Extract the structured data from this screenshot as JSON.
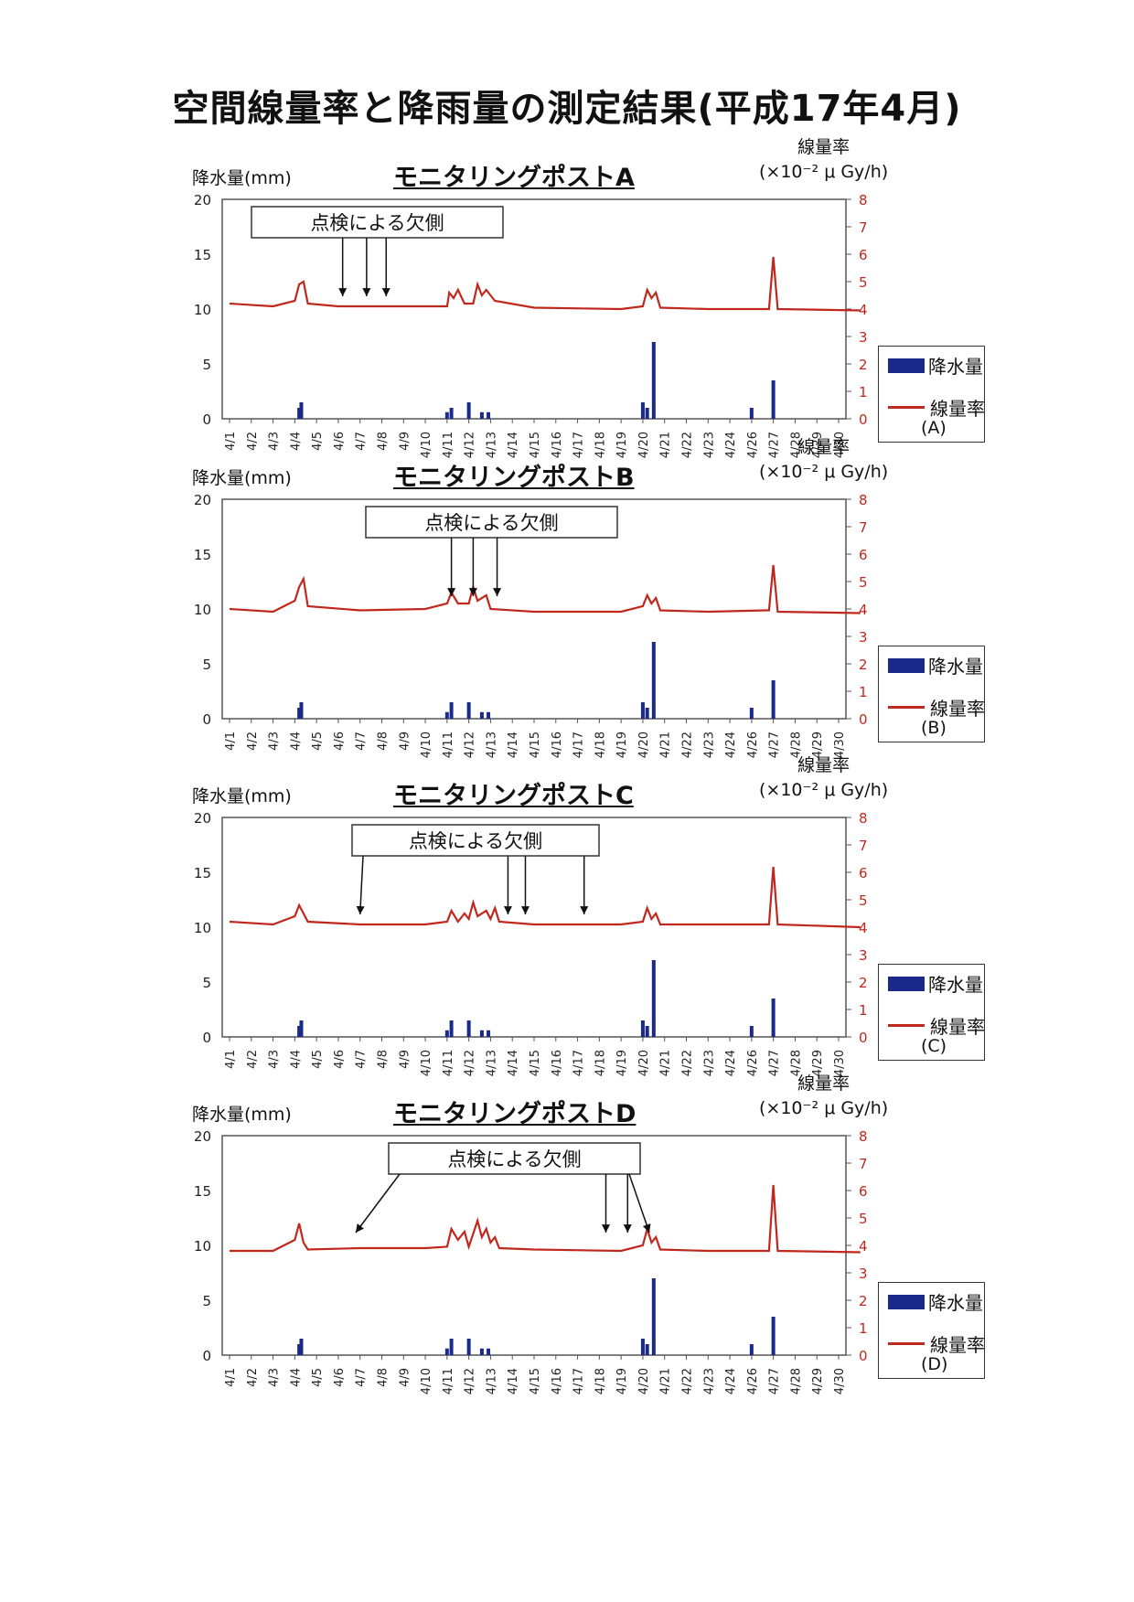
{
  "title": "空間線量率と降雨量の測定結果(平成17年4月)",
  "legend_rain": "降水量",
  "legend_dose": "線量率",
  "left_axis_label": "降水量(mm)",
  "right_axis_label_1": "線量率",
  "right_axis_label_2": "(×10⁻² μ Gy/h)",
  "note": "点検による欠側",
  "x_labels": [
    "4/1",
    "4/2",
    "4/3",
    "4/4",
    "4/5",
    "4/6",
    "4/7",
    "4/8",
    "4/9",
    "4/10",
    "4/11",
    "4/12",
    "4/13",
    "4/14",
    "4/15",
    "4/16",
    "4/17",
    "4/18",
    "4/19",
    "4/20",
    "4/21",
    "4/22",
    "4/23",
    "4/24",
    "4/26",
    "4/27",
    "4/28",
    "4/29",
    "4/30"
  ],
  "colors": {
    "rain": "#1a2a8a",
    "dose": "#c0281e"
  },
  "chart_data": [
    {
      "type": "bar+line",
      "title": "モニタリングポストA",
      "post_label": "(A)",
      "ylim_left": [
        0,
        20
      ],
      "yticks_left": [
        0,
        5,
        10,
        15,
        20
      ],
      "ylim_right": [
        0,
        8
      ],
      "yticks_right": [
        0,
        1,
        2,
        3,
        4,
        5,
        6,
        7,
        8
      ],
      "rain": [
        [
          3.2,
          1.0
        ],
        [
          3.3,
          1.5
        ],
        [
          10.0,
          0.6
        ],
        [
          10.2,
          1.0
        ],
        [
          11.0,
          1.5
        ],
        [
          11.6,
          0.6
        ],
        [
          11.9,
          0.6
        ],
        [
          19.0,
          1.5
        ],
        [
          19.2,
          1.0
        ],
        [
          19.5,
          7.0
        ],
        [
          24.0,
          1.0
        ],
        [
          25.0,
          3.5
        ]
      ],
      "dose": [
        [
          0,
          4.2
        ],
        [
          2,
          4.1
        ],
        [
          3.0,
          4.3
        ],
        [
          3.2,
          4.9
        ],
        [
          3.4,
          5.0
        ],
        [
          3.6,
          4.2
        ],
        [
          5.0,
          4.1
        ],
        [
          6.0,
          4.1
        ],
        [
          8.0,
          4.1
        ],
        [
          10.0,
          4.1
        ],
        [
          10.1,
          4.6
        ],
        [
          10.3,
          4.4
        ],
        [
          10.5,
          4.7
        ],
        [
          10.8,
          4.2
        ],
        [
          11.2,
          4.2
        ],
        [
          11.4,
          4.9
        ],
        [
          11.6,
          4.5
        ],
        [
          11.8,
          4.7
        ],
        [
          12.0,
          4.5
        ],
        [
          12.2,
          4.3
        ],
        [
          14.0,
          4.05
        ],
        [
          18.0,
          4.0
        ],
        [
          19.0,
          4.1
        ],
        [
          19.2,
          4.7
        ],
        [
          19.4,
          4.4
        ],
        [
          19.6,
          4.6
        ],
        [
          19.8,
          4.05
        ],
        [
          22.0,
          4.0
        ],
        [
          24.0,
          4.0
        ],
        [
          24.8,
          4.0
        ],
        [
          25.0,
          5.9
        ],
        [
          25.2,
          4.0
        ],
        [
          29.0,
          3.95
        ]
      ],
      "gaps": [
        5.2,
        6.3,
        7.2
      ]
    },
    {
      "type": "bar+line",
      "title": "モニタリングポストB",
      "post_label": "(B)",
      "ylim_left": [
        0,
        20
      ],
      "yticks_left": [
        0,
        5,
        10,
        15,
        20
      ],
      "ylim_right": [
        0,
        8
      ],
      "yticks_right": [
        0,
        1,
        2,
        3,
        4,
        5,
        6,
        7,
        8
      ],
      "rain": [
        [
          3.2,
          1.0
        ],
        [
          3.3,
          1.5
        ],
        [
          10.0,
          0.6
        ],
        [
          10.2,
          1.5
        ],
        [
          11.0,
          1.5
        ],
        [
          11.6,
          0.6
        ],
        [
          11.9,
          0.6
        ],
        [
          19.0,
          1.5
        ],
        [
          19.2,
          1.0
        ],
        [
          19.5,
          7.0
        ],
        [
          24.0,
          1.0
        ],
        [
          25.0,
          3.5
        ]
      ],
      "dose": [
        [
          0,
          4.0
        ],
        [
          2,
          3.9
        ],
        [
          3.0,
          4.3
        ],
        [
          3.2,
          4.8
        ],
        [
          3.4,
          5.1
        ],
        [
          3.6,
          4.1
        ],
        [
          6.0,
          3.95
        ],
        [
          9.0,
          4.0
        ],
        [
          10.0,
          4.2
        ],
        [
          10.2,
          4.6
        ],
        [
          10.5,
          4.2
        ],
        [
          11.0,
          4.2
        ],
        [
          11.2,
          4.8
        ],
        [
          11.4,
          4.3
        ],
        [
          11.8,
          4.5
        ],
        [
          12.0,
          4.0
        ],
        [
          14.0,
          3.9
        ],
        [
          18.0,
          3.9
        ],
        [
          19.0,
          4.1
        ],
        [
          19.2,
          4.5
        ],
        [
          19.4,
          4.2
        ],
        [
          19.6,
          4.4
        ],
        [
          19.8,
          3.95
        ],
        [
          22.0,
          3.9
        ],
        [
          24.6,
          3.95
        ],
        [
          24.8,
          3.95
        ],
        [
          25.0,
          5.6
        ],
        [
          25.2,
          3.9
        ],
        [
          29.0,
          3.85
        ]
      ],
      "gaps": [
        10.2,
        11.2,
        12.3
      ]
    },
    {
      "type": "bar+line",
      "title": "モニタリングポストC",
      "post_label": "(C)",
      "ylim_left": [
        0,
        20
      ],
      "yticks_left": [
        0,
        5,
        10,
        15,
        20
      ],
      "ylim_right": [
        0,
        8
      ],
      "yticks_right": [
        0,
        1,
        2,
        3,
        4,
        5,
        6,
        7,
        8
      ],
      "rain": [
        [
          3.2,
          1.0
        ],
        [
          3.3,
          1.5
        ],
        [
          10.0,
          0.6
        ],
        [
          10.2,
          1.5
        ],
        [
          11.0,
          1.5
        ],
        [
          11.6,
          0.6
        ],
        [
          11.9,
          0.6
        ],
        [
          19.0,
          1.5
        ],
        [
          19.2,
          1.0
        ],
        [
          19.5,
          7.0
        ],
        [
          24.0,
          1.0
        ],
        [
          25.0,
          3.5
        ]
      ],
      "dose": [
        [
          0,
          4.2
        ],
        [
          2,
          4.1
        ],
        [
          3.0,
          4.4
        ],
        [
          3.2,
          4.8
        ],
        [
          3.4,
          4.5
        ],
        [
          3.6,
          4.2
        ],
        [
          6.0,
          4.1
        ],
        [
          9.0,
          4.1
        ],
        [
          10.0,
          4.2
        ],
        [
          10.2,
          4.6
        ],
        [
          10.5,
          4.2
        ],
        [
          10.8,
          4.5
        ],
        [
          11.0,
          4.3
        ],
        [
          11.2,
          4.9
        ],
        [
          11.4,
          4.4
        ],
        [
          11.8,
          4.6
        ],
        [
          12.0,
          4.3
        ],
        [
          12.2,
          4.7
        ],
        [
          12.4,
          4.2
        ],
        [
          14.0,
          4.1
        ],
        [
          18.0,
          4.1
        ],
        [
          19.0,
          4.2
        ],
        [
          19.2,
          4.7
        ],
        [
          19.4,
          4.3
        ],
        [
          19.6,
          4.5
        ],
        [
          19.8,
          4.1
        ],
        [
          22.0,
          4.1
        ],
        [
          24.8,
          4.1
        ],
        [
          25.0,
          6.2
        ],
        [
          25.2,
          4.1
        ],
        [
          29.0,
          4.0
        ]
      ],
      "gaps": [
        6.0,
        12.8,
        13.6,
        16.3
      ]
    },
    {
      "type": "bar+line",
      "title": "モニタリングポストD",
      "post_label": "(D)",
      "ylim_left": [
        0,
        20
      ],
      "yticks_left": [
        0,
        5,
        10,
        15,
        20
      ],
      "ylim_right": [
        0,
        8
      ],
      "yticks_right": [
        0,
        1,
        2,
        3,
        4,
        5,
        6,
        7,
        8
      ],
      "rain": [
        [
          3.2,
          1.0
        ],
        [
          3.3,
          1.5
        ],
        [
          10.0,
          0.6
        ],
        [
          10.2,
          1.5
        ],
        [
          11.0,
          1.5
        ],
        [
          11.6,
          0.6
        ],
        [
          11.9,
          0.6
        ],
        [
          19.0,
          1.5
        ],
        [
          19.2,
          1.0
        ],
        [
          19.5,
          7.0
        ],
        [
          24.0,
          1.0
        ],
        [
          25.0,
          3.5
        ]
      ],
      "dose": [
        [
          0,
          3.8
        ],
        [
          2,
          3.8
        ],
        [
          3.0,
          4.2
        ],
        [
          3.2,
          4.8
        ],
        [
          3.4,
          4.1
        ],
        [
          3.6,
          3.85
        ],
        [
          6.0,
          3.9
        ],
        [
          9.0,
          3.9
        ],
        [
          10.0,
          3.95
        ],
        [
          10.2,
          4.6
        ],
        [
          10.5,
          4.2
        ],
        [
          10.8,
          4.5
        ],
        [
          11.0,
          3.95
        ],
        [
          11.4,
          4.9
        ],
        [
          11.6,
          4.3
        ],
        [
          11.8,
          4.6
        ],
        [
          12.0,
          4.1
        ],
        [
          12.2,
          4.3
        ],
        [
          12.4,
          3.9
        ],
        [
          14.0,
          3.85
        ],
        [
          18.0,
          3.8
        ],
        [
          19.0,
          4.0
        ],
        [
          19.2,
          4.6
        ],
        [
          19.4,
          4.1
        ],
        [
          19.6,
          4.3
        ],
        [
          19.8,
          3.85
        ],
        [
          22.0,
          3.8
        ],
        [
          24.8,
          3.8
        ],
        [
          25.0,
          6.2
        ],
        [
          25.2,
          3.8
        ],
        [
          29.0,
          3.75
        ]
      ],
      "gaps": [
        5.8,
        17.3,
        18.3,
        19.3
      ]
    }
  ]
}
